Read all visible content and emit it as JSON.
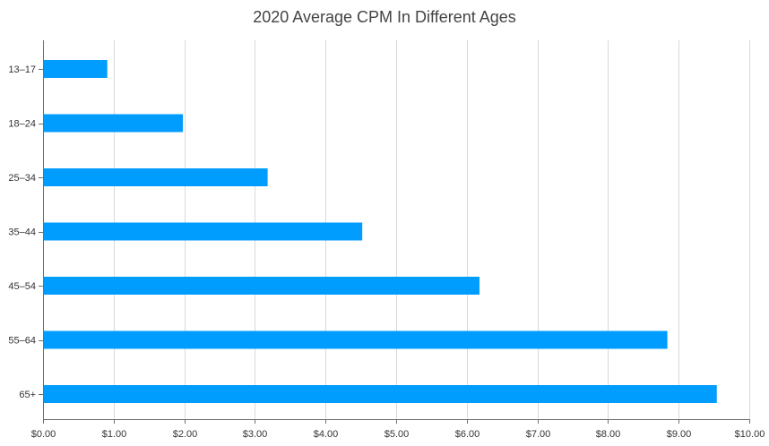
{
  "chart_data": {
    "type": "bar",
    "orientation": "horizontal",
    "title": "2020 Average CPM In Different Ages",
    "xlabel": "",
    "ylabel": "",
    "categories": [
      "13–17",
      "18–24",
      "25–34",
      "35–44",
      "45–54",
      "55–64",
      "65+"
    ],
    "values": [
      0.91,
      1.98,
      3.18,
      4.52,
      6.18,
      8.84,
      9.54
    ],
    "xlim": [
      0,
      10
    ],
    "x_ticks": [
      "$0.00",
      "$1.00",
      "$2.00",
      "$3.00",
      "$4.00",
      "$5.00",
      "$6.00",
      "$7.00",
      "$8.00",
      "$9.00",
      "$10.00"
    ],
    "grid": "vertical",
    "legend": "none",
    "colors": {
      "bar": "#009dff",
      "grid": "#d9d9d9",
      "axis": "#6e6e6e",
      "title": "#444444",
      "text": "#333333"
    }
  }
}
